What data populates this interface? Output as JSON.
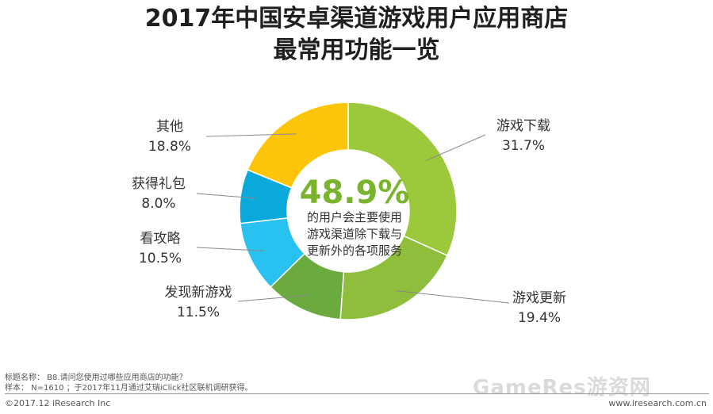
{
  "title": {
    "line1": "2017年中国安卓渠道游戏用户应用商店",
    "line2": "最常用功能一览"
  },
  "chart_data": {
    "type": "pie",
    "title": "2017年中国安卓渠道游戏用户应用商店最常用功能一览",
    "unit": "%",
    "slices": [
      {
        "label": "游戏下载",
        "value": 31.7,
        "value_text": "31.7%",
        "color": "#9cc93b"
      },
      {
        "label": "游戏更新",
        "value": 19.4,
        "value_text": "19.4%",
        "color": "#8ebe3c"
      },
      {
        "label": "发现新游戏",
        "value": 11.5,
        "value_text": "11.5%",
        "color": "#6aaa3f"
      },
      {
        "label": "看攻略",
        "value": 10.5,
        "value_text": "10.5%",
        "color": "#29c2f0"
      },
      {
        "label": "获得礼包",
        "value": 8.0,
        "value_text": "8.0%",
        "color": "#0aa9dc"
      },
      {
        "label": "其他",
        "value": 18.8,
        "value_text": "18.8%",
        "color": "#fcc509"
      }
    ],
    "center": {
      "value_text": "48.9%",
      "line1": "的用户会主要使用",
      "line2": "游戏渠道除下载与",
      "line3": "更新外的各项服务"
    }
  },
  "footer": {
    "note1": "标题名称： B8.请问您使用过哪些应用商店的功能？",
    "note2": "样本： N=1610 ；于2017年11月通过艾瑞iClick社区联机调研获得。",
    "copyright": "©2017.12 iResearch Inc",
    "site": "www.iresearch.com.cn",
    "watermark": "GameRes游资网"
  }
}
